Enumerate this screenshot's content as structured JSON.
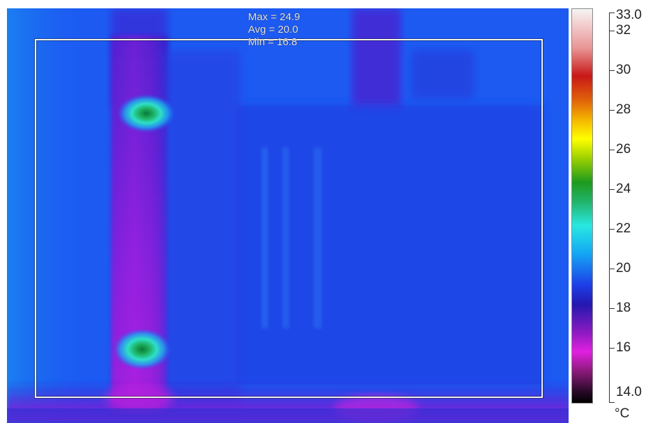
{
  "stats": {
    "max": "Max = 24.9",
    "avg": "Avg = 20.0",
    "min": "Min = 16.8"
  },
  "scale": {
    "top_value": "33.0",
    "bottom_value": "14.0",
    "unit": "°C",
    "ticks": [
      "32",
      "30",
      "28",
      "26",
      "24",
      "22",
      "20",
      "18",
      "16"
    ]
  },
  "colors": {
    "background_blue": "#1a4ff0",
    "roi_border": "#f2f2e8",
    "hot_spot": "#1e9a1e",
    "cool_band": "#c020e0"
  }
}
